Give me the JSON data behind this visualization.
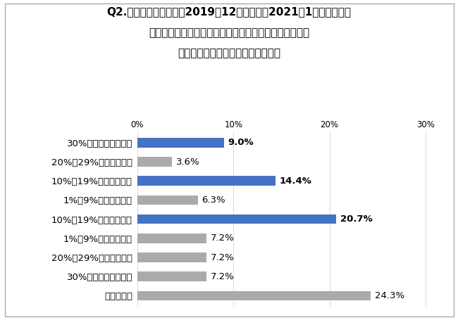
{
  "title_line1": "Q2.新型コロナ流行前の2019年12月と現在（2021年1月）を比べ、",
  "title_line2": "　日経平均株価はどのようになっていると思いますか。",
  "title_line3": "　調べずに直感でお答えください。",
  "categories": [
    "30%以上下がっている",
    "20%～29%下がっている",
    "10%～19%下がっている",
    "1%～9%下がっている",
    "10%～19%上がっている",
    "1%～9%上がっている",
    "20%～29%上がっている",
    "30%以上上がっている",
    "わからない"
  ],
  "values": [
    9.0,
    3.6,
    14.4,
    6.3,
    20.7,
    7.2,
    7.2,
    7.2,
    24.3
  ],
  "colors": [
    "#4472c4",
    "#aaaaaa",
    "#4472c4",
    "#aaaaaa",
    "#4472c4",
    "#aaaaaa",
    "#aaaaaa",
    "#aaaaaa",
    "#aaaaaa"
  ],
  "highlight_indices": [
    0,
    2,
    4
  ],
  "xlim": [
    0,
    31
  ],
  "xticks": [
    0,
    10,
    20,
    30
  ],
  "xticklabels": [
    "0%",
    "10%",
    "20%",
    "30%"
  ],
  "background_color": "#ffffff",
  "border_color": "#aaaaaa",
  "bar_height": 0.5,
  "label_fontsize": 9.5,
  "value_fontsize": 9.5,
  "title_fontsize": 11.0
}
